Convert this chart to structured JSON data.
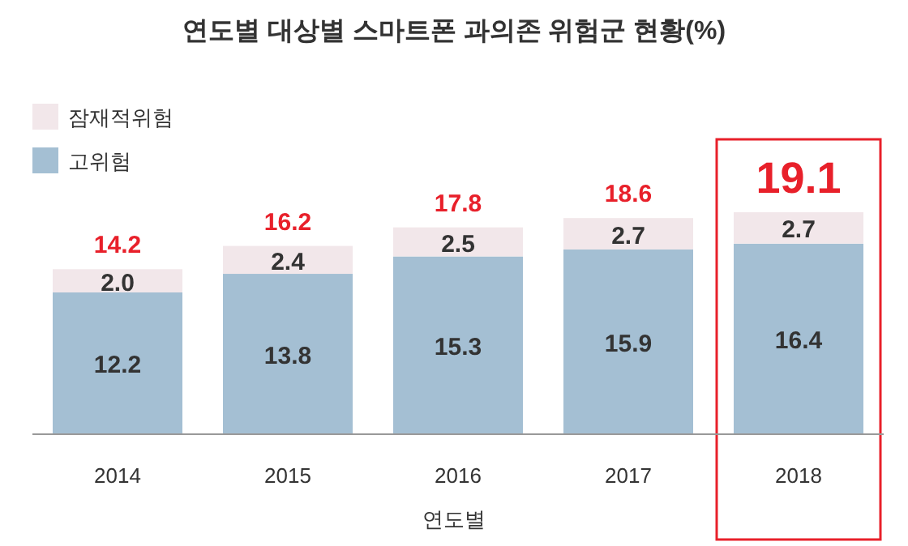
{
  "chart_data": {
    "type": "bar",
    "title": "연도별 대상별 스마트폰 과의존 위험군 현황(%)",
    "xlabel": "연도별",
    "categories": [
      "2014",
      "2015",
      "2016",
      "2017",
      "2018"
    ],
    "stacked": true,
    "legend": "top left",
    "series": [
      {
        "name": "고위험",
        "color": "#a4bfd3",
        "values": [
          12.2,
          13.8,
          15.3,
          15.9,
          16.4
        ],
        "value_labels": [
          "12.2",
          "13.8",
          "15.3",
          "15.9",
          "16.4"
        ]
      },
      {
        "name": "잠재적위험",
        "color": "#f2e7ea",
        "values": [
          2.0,
          2.4,
          2.5,
          2.7,
          2.7
        ],
        "value_labels": [
          "2.0",
          "2.4",
          "2.5",
          "2.7",
          "2.7"
        ]
      }
    ],
    "totals": [
      "14.2",
      "16.2",
      "17.8",
      "18.6",
      "19.1"
    ]
  }
}
